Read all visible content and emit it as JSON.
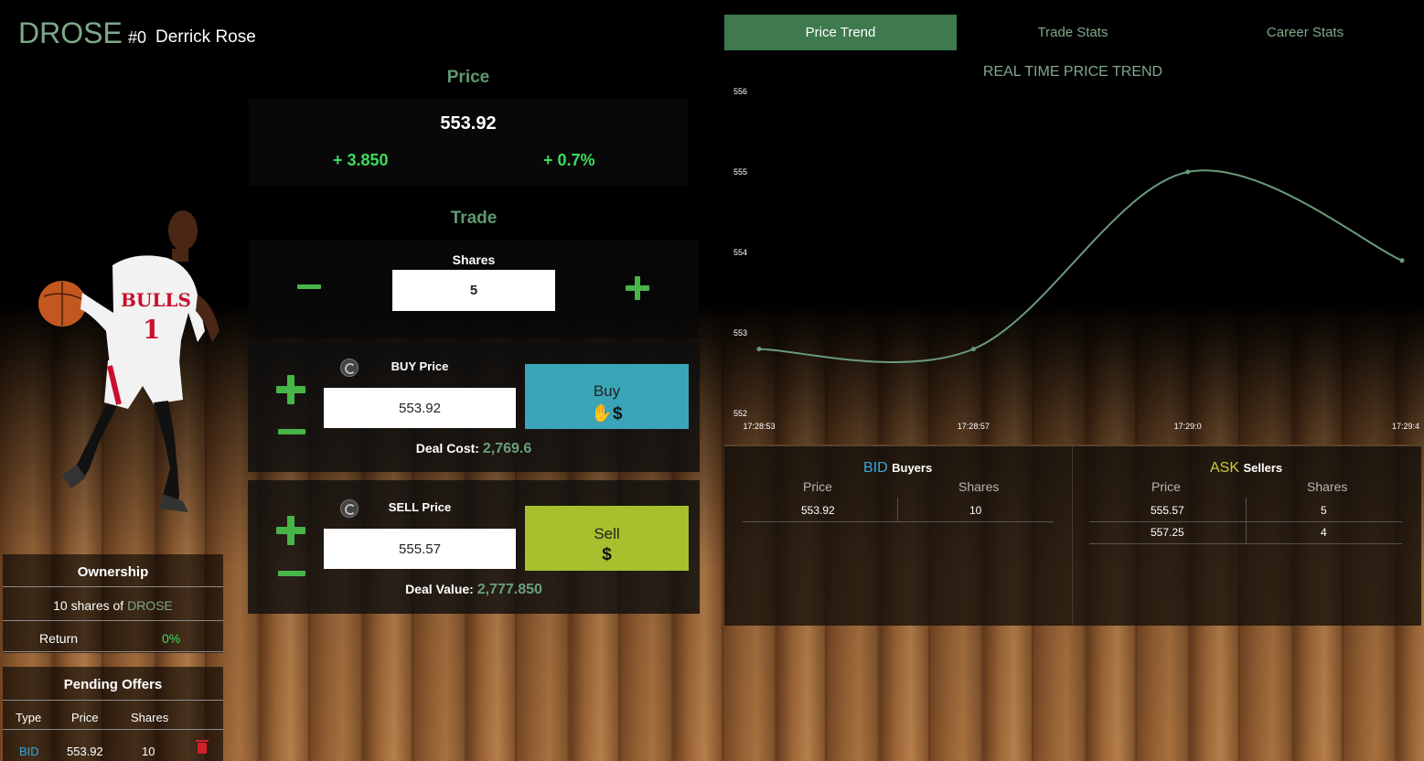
{
  "header": {
    "ticker": "DROSE",
    "jersey": "#0",
    "player_name": "Derrick Rose"
  },
  "price": {
    "title": "Price",
    "value": "553.92",
    "change_abs": "+ 3.850",
    "change_pct": "+ 0.7%"
  },
  "trade": {
    "title": "Trade",
    "shares_label": "Shares",
    "shares_value": "5"
  },
  "buy": {
    "price_label": "BUY Price",
    "price_value": "553.92",
    "button_label": "Buy",
    "deal_label": "Deal Cost:",
    "deal_value": "2,769.6"
  },
  "sell": {
    "price_label": "SELL Price",
    "price_value": "555.57",
    "button_label": "Sell",
    "deal_label": "Deal Value:",
    "deal_value": "2,777.850"
  },
  "ownership": {
    "title": "Ownership",
    "shares_text": "10 shares of",
    "ticker": "DROSE",
    "return_label": "Return",
    "return_value": "0%"
  },
  "pending": {
    "title": "Pending Offers",
    "headers": [
      "Type",
      "Price",
      "Shares"
    ],
    "rows": [
      {
        "type": "BID",
        "price": "553.92",
        "shares": "10"
      }
    ]
  },
  "tabs": [
    {
      "label": "Price Trend",
      "active": true
    },
    {
      "label": "Trade Stats",
      "active": false
    },
    {
      "label": "Career Stats",
      "active": false
    }
  ],
  "chart_data": {
    "type": "line",
    "title": "REAL TIME PRICE TREND",
    "x": [
      "17:28:53",
      "17:28:57",
      "17:29:0",
      "17:29:4"
    ],
    "y_ticks": [
      556,
      555,
      554,
      553,
      552
    ],
    "ylim": [
      552,
      556
    ],
    "series": [
      {
        "values": [
          552.8,
          552.8,
          555.0,
          553.9
        ]
      }
    ],
    "line_color": "#6a9a7a",
    "grid": false
  },
  "orderbook": {
    "bid": {
      "title": "BID",
      "subtitle": "Buyers",
      "title_color": "#3aa5dc",
      "headers": [
        "Price",
        "Shares"
      ],
      "rows": [
        {
          "price": "553.92",
          "shares": "10"
        }
      ]
    },
    "ask": {
      "title": "ASK",
      "subtitle": "Sellers",
      "title_color": "#c8cf3a",
      "headers": [
        "Price",
        "Shares"
      ],
      "rows": [
        {
          "price": "555.57",
          "shares": "5"
        },
        {
          "price": "557.25",
          "shares": "4"
        }
      ]
    }
  }
}
